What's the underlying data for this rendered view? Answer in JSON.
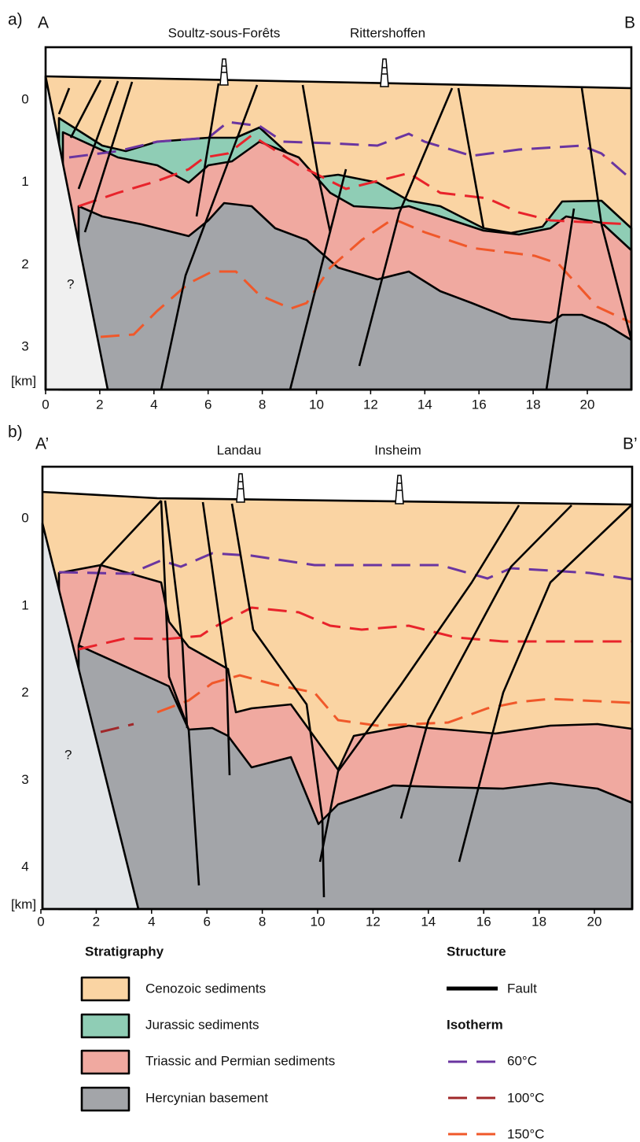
{
  "panel_a": {
    "label": "a)",
    "left_end": "A",
    "right_end": "B",
    "wells": [
      "Soultz-sous-Forêts",
      "Rittershoffen"
    ],
    "unknown": "?",
    "depth_unit": "[km]",
    "depth_ticks": [
      0,
      1,
      2,
      3
    ],
    "distance_ticks": [
      0,
      2,
      4,
      6,
      8,
      10,
      12,
      14,
      16,
      18,
      20
    ]
  },
  "panel_b": {
    "label": "b)",
    "left_end": "A’",
    "right_end": "B’",
    "wells": [
      "Landau",
      "Insheim"
    ],
    "unknown": "?",
    "depth_unit": "[km]",
    "depth_ticks": [
      0,
      1,
      2,
      3,
      4
    ],
    "distance_ticks": [
      0,
      2,
      4,
      6,
      8,
      10,
      12,
      14,
      16,
      18,
      20
    ]
  },
  "legend": {
    "stratigraphy_title": "Stratigraphy",
    "units": [
      "Cenozoic sediments",
      "Jurassic sediments",
      "Triassic and Permian sediments",
      "Hercynian basement"
    ],
    "structure_title": "Structure",
    "fault": "Fault",
    "isotherm_title": "Isotherm",
    "isotherms": [
      "60°C",
      "100°C",
      "150°C"
    ]
  }
}
